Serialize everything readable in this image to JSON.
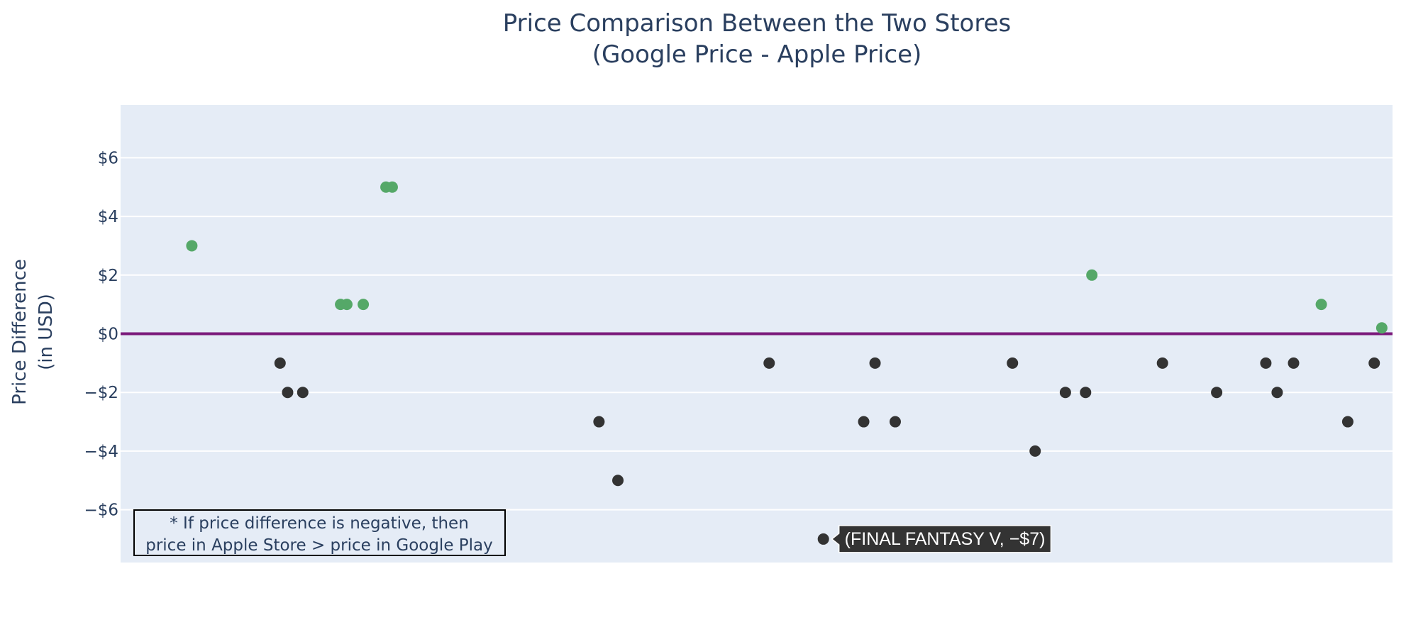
{
  "chart_data": {
    "type": "scatter",
    "title": "Price Comparison Between the Two Stores",
    "subtitle": "(Google Price - Apple Price)",
    "ylabel_line1": "Price Difference",
    "ylabel_line2": "(in USD)",
    "ylim": [
      -7.8,
      7.8
    ],
    "y_ticks": [
      {
        "value": 6,
        "label": "$6"
      },
      {
        "value": 4,
        "label": "$4"
      },
      {
        "value": 2,
        "label": "$2"
      },
      {
        "value": 0,
        "label": "$0"
      },
      {
        "value": -2,
        "label": "−$2"
      },
      {
        "value": -4,
        "label": "−$4"
      },
      {
        "value": -6,
        "label": "−$6"
      }
    ],
    "grid": true,
    "x_ticks_visible": false,
    "xlim": [
      0,
      100
    ],
    "colors": {
      "positive": "#55a868",
      "negative": "#333333",
      "zero_line": "#7b1a7b",
      "plot_bg": "#e5ecf6",
      "grid": "#ffffff"
    },
    "points": [
      {
        "x": 5.2,
        "y": 3
      },
      {
        "x": 12.2,
        "y": -1
      },
      {
        "x": 12.8,
        "y": -2
      },
      {
        "x": 14.0,
        "y": -2
      },
      {
        "x": 17.0,
        "y": 1
      },
      {
        "x": 17.5,
        "y": 1
      },
      {
        "x": 18.8,
        "y": 1
      },
      {
        "x": 20.6,
        "y": 5
      },
      {
        "x": 21.1,
        "y": 5
      },
      {
        "x": 37.5,
        "y": -3
      },
      {
        "x": 39.0,
        "y": -5
      },
      {
        "x": 51.0,
        "y": -1
      },
      {
        "x": 55.3,
        "y": -7
      },
      {
        "x": 58.5,
        "y": -3
      },
      {
        "x": 59.4,
        "y": -1
      },
      {
        "x": 61.0,
        "y": -3
      },
      {
        "x": 70.3,
        "y": -1
      },
      {
        "x": 72.1,
        "y": -4
      },
      {
        "x": 74.5,
        "y": -2
      },
      {
        "x": 76.1,
        "y": -2
      },
      {
        "x": 76.6,
        "y": 2
      },
      {
        "x": 82.2,
        "y": -1
      },
      {
        "x": 86.5,
        "y": -2
      },
      {
        "x": 90.4,
        "y": -1
      },
      {
        "x": 91.3,
        "y": -2
      },
      {
        "x": 92.6,
        "y": -1
      },
      {
        "x": 94.8,
        "y": 1
      },
      {
        "x": 96.9,
        "y": -3
      },
      {
        "x": 99.0,
        "y": -1
      },
      {
        "x": 99.6,
        "y": 0.2
      }
    ],
    "annotation": {
      "line1": "* If price difference is negative, then",
      "line2": "price in Apple Store > price in Google Play"
    },
    "tooltip": {
      "point_index": 12,
      "text": "(FINAL FANTASY V, −$7)"
    }
  }
}
